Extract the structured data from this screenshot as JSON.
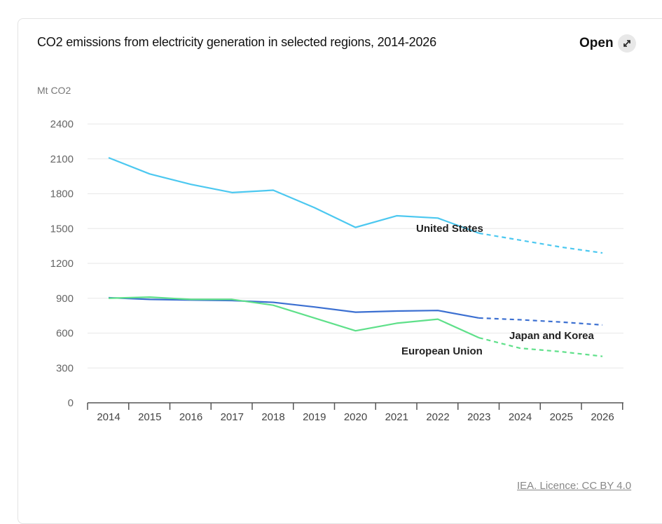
{
  "header": {
    "title": "CO2 emissions from electricity generation in selected regions, 2014-2026",
    "open_label": "Open",
    "open_icon": "expand-arrows-icon"
  },
  "footer": {
    "credit": "IEA. Licence: CC BY 4.0"
  },
  "chart_data": {
    "type": "line",
    "title": "CO2 emissions from electricity generation in selected regions, 2014-2026",
    "xlabel": "",
    "ylabel": "Mt CO2",
    "ylim": [
      0,
      2400
    ],
    "yticks": [
      0,
      300,
      600,
      900,
      1200,
      1500,
      1800,
      2100,
      2400
    ],
    "grid": true,
    "legend": "inline-labels",
    "x": [
      "2014",
      "2015",
      "2016",
      "2017",
      "2018",
      "2019",
      "2020",
      "2021",
      "2022",
      "2023",
      "2024",
      "2025",
      "2026"
    ],
    "forecast_start": "2023",
    "series": [
      {
        "name": "United States",
        "color": "#4cc8f0",
        "values": [
          2110,
          1970,
          1880,
          1810,
          1830,
          1680,
          1510,
          1610,
          1590,
          1460,
          1400,
          1340,
          1290
        ]
      },
      {
        "name": "Japan and Korea",
        "color": "#3b6fd1",
        "values": [
          905,
          890,
          885,
          880,
          865,
          825,
          780,
          790,
          795,
          730,
          715,
          695,
          670
        ]
      },
      {
        "name": "European Union",
        "color": "#5fe08a",
        "values": [
          900,
          910,
          890,
          890,
          840,
          730,
          620,
          685,
          720,
          560,
          470,
          440,
          400
        ]
      }
    ]
  }
}
